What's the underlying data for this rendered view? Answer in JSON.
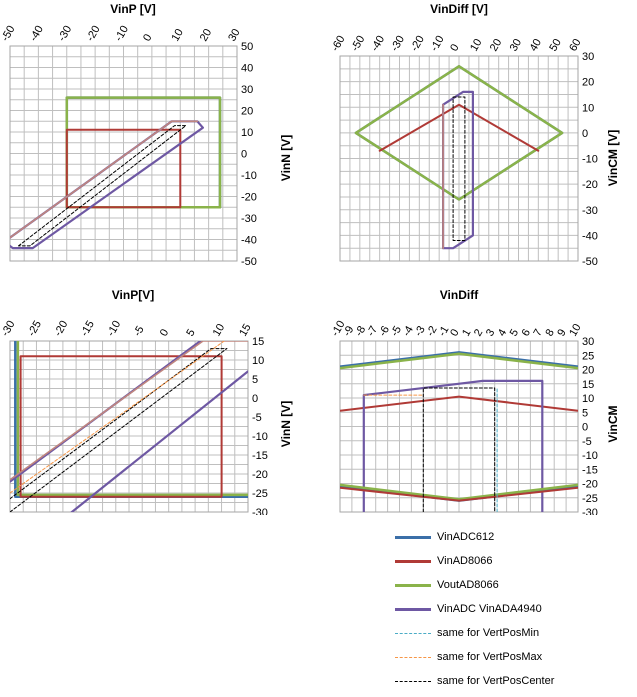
{
  "legend": [
    {
      "name": "VinADC612",
      "color": "#3B6FA8",
      "dash": false
    },
    {
      "name": "VinAD8066",
      "color": "#B03A36",
      "dash": false
    },
    {
      "name": "VoutAD8066",
      "color": "#8AB34A",
      "dash": false
    },
    {
      "name": "VinADC VinADA4940",
      "color": "#6E58A3",
      "dash": false
    },
    {
      "name": "same for VertPosMin",
      "color": "#4BACC6",
      "dash": true
    },
    {
      "name": "same for VertPosMax",
      "color": "#F79646",
      "dash": true
    },
    {
      "name": "same for VertPosCenter",
      "color": "#000000",
      "dash": true
    }
  ],
  "chart_data": [
    {
      "id": "c1",
      "type": "line",
      "title": "VinP [V]",
      "xlabel": "",
      "ylabel": "VinN [V]",
      "xlim": [
        -50,
        30
      ],
      "ylim": [
        -50,
        50
      ],
      "xticks": [
        -50,
        -40,
        -30,
        -20,
        -10,
        0,
        10,
        20,
        30
      ],
      "yticks": [
        -50,
        -40,
        -30,
        -20,
        -10,
        0,
        10,
        20,
        30,
        40,
        50
      ],
      "xminor": 5,
      "yminor": 5,
      "series": [
        {
          "color": "#3B6FA8",
          "width": 2.5,
          "points": [
            [
              -30,
              26
            ],
            [
              24,
              26
            ],
            [
              24,
              -25
            ],
            [
              -30,
              -25
            ],
            [
              -30,
              26
            ]
          ]
        },
        {
          "color": "#8AB34A",
          "width": 2.5,
          "points": [
            [
              -30,
              26
            ],
            [
              24,
              26
            ],
            [
              24,
              -25
            ],
            [
              -30,
              -25
            ],
            [
              -30,
              26
            ]
          ]
        },
        {
          "color": "#B03A36",
          "width": 2,
          "points": [
            [
              -30,
              11
            ],
            [
              10,
              11
            ],
            [
              10,
              -25
            ],
            [
              -30,
              -25
            ],
            [
              -30,
              11
            ]
          ]
        },
        {
          "color": "#6E58A3",
          "width": 2.2,
          "points": [
            [
              -52,
              -41
            ],
            [
              7,
              15
            ],
            [
              16,
              15
            ],
            [
              18,
              12
            ],
            [
              -42,
              -44
            ],
            [
              -49,
              -44
            ],
            [
              -52,
              -41
            ]
          ]
        },
        {
          "color": "#C0867E",
          "width": 1.6,
          "points": [
            [
              -52,
              -41
            ],
            [
              7,
              15
            ],
            [
              16,
              15
            ]
          ]
        },
        {
          "color": "#000000",
          "width": 1,
          "dash": "3,2",
          "points": [
            [
              -47,
              -43
            ],
            [
              8,
              13
            ],
            [
              12,
              13
            ],
            [
              -43,
              -43
            ],
            [
              -47,
              -43
            ]
          ]
        }
      ]
    },
    {
      "id": "c2",
      "type": "line",
      "title": "VinDiff [V]",
      "xlabel": "",
      "ylabel": "VinCM [V]",
      "xlim": [
        -60,
        60
      ],
      "ylim": [
        -50,
        30
      ],
      "xticks": [
        -60,
        -50,
        -40,
        -30,
        -20,
        -10,
        0,
        10,
        20,
        30,
        40,
        50,
        60
      ],
      "yticks": [
        -50,
        -40,
        -30,
        -20,
        -10,
        0,
        10,
        20,
        30
      ],
      "xminor": 5,
      "yminor": 5,
      "series": [
        {
          "color": "#3B6FA8",
          "width": 2.5,
          "points": [
            [
              0,
              26
            ],
            [
              52,
              0
            ],
            [
              0,
              -26
            ],
            [
              -52,
              0
            ],
            [
              0,
              26
            ]
          ]
        },
        {
          "color": "#8AB34A",
          "width": 2.5,
          "points": [
            [
              0,
              26
            ],
            [
              52,
              0
            ],
            [
              0,
              -26
            ],
            [
              -52,
              0
            ],
            [
              0,
              26
            ]
          ]
        },
        {
          "color": "#B03A36",
          "width": 2,
          "points": [
            [
              -40,
              -7
            ],
            [
              0,
              11
            ],
            [
              40,
              -7
            ]
          ]
        },
        {
          "color": "#6E58A3",
          "width": 2.2,
          "points": [
            [
              -8,
              11
            ],
            [
              2,
              16
            ],
            [
              7,
              16
            ],
            [
              7,
              -40
            ],
            [
              -3,
              -45
            ],
            [
              -8,
              -45
            ],
            [
              -8,
              11
            ]
          ]
        },
        {
          "color": "#C0867E",
          "width": 1.6,
          "points": [
            [
              -8,
              -45
            ],
            [
              -8,
              11
            ]
          ]
        },
        {
          "color": "#000000",
          "width": 1,
          "dash": "3,2",
          "points": [
            [
              -3,
              14
            ],
            [
              3,
              14
            ],
            [
              3,
              -42
            ],
            [
              -3,
              -42
            ],
            [
              -3,
              14
            ]
          ]
        }
      ]
    },
    {
      "id": "c3",
      "type": "line",
      "title": "VinP[V]",
      "xlabel": "",
      "ylabel": "VinN [V]",
      "xlim": [
        -30,
        15
      ],
      "ylim": [
        -30,
        15
      ],
      "xticks": [
        -30,
        -25,
        -20,
        -15,
        -10,
        -5,
        0,
        5,
        10,
        15
      ],
      "yticks": [
        -30,
        -25,
        -20,
        -15,
        -10,
        -5,
        0,
        5,
        10,
        15
      ],
      "xminor": 2.5,
      "yminor": 2.5,
      "series": [
        {
          "color": "#3B6FA8",
          "width": 2.5,
          "points": [
            [
              -29,
              15
            ],
            [
              -29,
              -26
            ],
            [
              15,
              -26
            ]
          ]
        },
        {
          "color": "#8AB34A",
          "width": 2.5,
          "points": [
            [
              -28.5,
              15
            ],
            [
              -28.5,
              -25.5
            ],
            [
              15,
              -25.5
            ]
          ]
        },
        {
          "color": "#B03A36",
          "width": 2,
          "points": [
            [
              -28,
              11
            ],
            [
              10,
              11
            ],
            [
              10,
              -26
            ],
            [
              -28,
              -26
            ],
            [
              -28,
              11
            ]
          ]
        },
        {
          "color": "#6E58A3",
          "width": 2.2,
          "points": [
            [
              -30,
              -22
            ],
            [
              6,
              15
            ]
          ]
        },
        {
          "color": "#C0867E",
          "width": 1.6,
          "points": [
            [
              -30,
              -21.5
            ],
            [
              6.5,
              15
            ],
            [
              15,
              15
            ]
          ]
        },
        {
          "color": "#6E58A3",
          "width": 2.2,
          "points": [
            [
              -30,
              -43
            ],
            [
              15,
              7
            ]
          ]
        },
        {
          "color": "#000000",
          "width": 1,
          "dash": "3,2",
          "points": [
            [
              -30,
              -26.5
            ],
            [
              8,
              13
            ]
          ]
        },
        {
          "color": "#000000",
          "width": 1,
          "dash": "3,2",
          "points": [
            [
              -30,
              -30
            ],
            [
              11,
              13
            ]
          ]
        },
        {
          "color": "#000000",
          "width": 1,
          "dash": "3,2",
          "points": [
            [
              8,
              13
            ],
            [
              11,
              13
            ]
          ]
        },
        {
          "color": "#F79646",
          "width": 1,
          "dash": "3,2",
          "points": [
            [
              -30,
              -25
            ],
            [
              10.5,
              15
            ]
          ]
        }
      ]
    },
    {
      "id": "c4",
      "type": "line",
      "title": "VinDiff",
      "xlabel": "",
      "ylabel": "VinCM",
      "xlim": [
        -10,
        10
      ],
      "ylim": [
        -30,
        30
      ],
      "xticks": [
        -10,
        -9,
        -8,
        -7,
        -6,
        -5,
        -4,
        -3,
        -2,
        -1,
        0,
        1,
        2,
        3,
        4,
        5,
        6,
        7,
        8,
        9,
        10
      ],
      "yticks": [
        -30,
        -25,
        -20,
        -15,
        -10,
        -5,
        0,
        5,
        10,
        15,
        20,
        25,
        30
      ],
      "xminor": 1,
      "yminor": 5,
      "series": [
        {
          "color": "#3B6FA8",
          "width": 2.5,
          "points": [
            [
              -10,
              21
            ],
            [
              0,
              26
            ],
            [
              10,
              21
            ]
          ]
        },
        {
          "color": "#8AB34A",
          "width": 2.5,
          "points": [
            [
              -10,
              20.5
            ],
            [
              0,
              25.5
            ],
            [
              10,
              20.5
            ]
          ]
        },
        {
          "color": "#B03A36",
          "width": 2,
          "points": [
            [
              -10,
              5.5
            ],
            [
              0,
              10.5
            ],
            [
              10,
              5.5
            ]
          ]
        },
        {
          "color": "#6E58A3",
          "width": 2.2,
          "points": [
            [
              -8,
              -30
            ],
            [
              -8,
              11
            ],
            [
              2,
              16
            ],
            [
              7,
              16
            ],
            [
              7,
              -30
            ]
          ]
        },
        {
          "color": "#3B6FA8",
          "width": 2.5,
          "points": [
            [
              -10,
              -21
            ],
            [
              0,
              -26
            ],
            [
              10,
              -21
            ]
          ]
        },
        {
          "color": "#8AB34A",
          "width": 2.5,
          "points": [
            [
              -10,
              -20.5
            ],
            [
              0,
              -25.5
            ],
            [
              10,
              -20.5
            ]
          ]
        },
        {
          "color": "#B03A36",
          "width": 2,
          "points": [
            [
              -10,
              -21.5
            ],
            [
              0,
              -26
            ],
            [
              10,
              -21.5
            ]
          ]
        },
        {
          "color": "#000000",
          "width": 1,
          "dash": "3,2",
          "points": [
            [
              -3,
              -30
            ],
            [
              -3,
              13.5
            ],
            [
              3,
              13.5
            ],
            [
              3,
              -30
            ]
          ]
        },
        {
          "color": "#F79646",
          "width": 1,
          "dash": "3,2",
          "points": [
            [
              -8,
              11
            ],
            [
              -3,
              11
            ]
          ]
        },
        {
          "color": "#4BACC6",
          "width": 1,
          "dash": "3,2",
          "points": [
            [
              3.2,
              -30
            ],
            [
              3.2,
              13.5
            ]
          ]
        }
      ]
    }
  ]
}
